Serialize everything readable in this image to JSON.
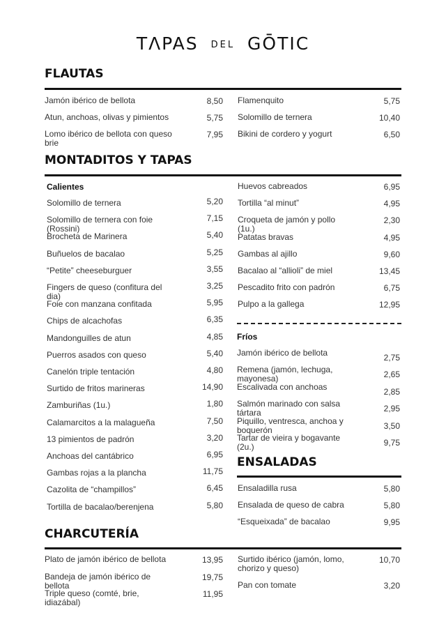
{
  "logo": {
    "part1": "TΛPAS",
    "part2": "DEL",
    "part3": "GŌTIC"
  },
  "flautas": {
    "title": "FLAUTAS",
    "left": [
      {
        "name": "Jamón ibérico de bellota",
        "price": "8,50"
      },
      {
        "name": "Atun, anchoas, olivas y pimientos",
        "price": "5,75"
      },
      {
        "name": "Lomo ibérico de bellota con queso brie",
        "price": "7,95"
      }
    ],
    "right": [
      {
        "name": "Flamenquito",
        "price": "5,75"
      },
      {
        "name": "Solomillo de ternera",
        "price": "10,40"
      },
      {
        "name": "Bikini de cordero y yogurt",
        "price": "6,50"
      }
    ]
  },
  "montaditos": {
    "title": "MONTADITOS Y TAPAS",
    "calientes_label": "Calientes",
    "calientes_left": [
      {
        "name": "Solomillo de ternera",
        "price": "5,20"
      },
      {
        "name": "Solomillo de ternera con foie (Rossini)",
        "price": "7,15"
      },
      {
        "name": "Brocheta de Marinera",
        "price": "5,40"
      },
      {
        "name": "Buñuelos de bacalao",
        "price": "5,25"
      },
      {
        "name": "“Petite” cheeseburguer",
        "price": "3,55"
      },
      {
        "name": "Fingers de queso (confitura del dia)",
        "price": "3,25"
      },
      {
        "name": "Foie con manzana confitada",
        "price": "5,95"
      },
      {
        "name": "Chips de alcachofas",
        "price": "6,35"
      },
      {
        "name": "Mandonguilles de atun",
        "price": "4,85"
      },
      {
        "name": "Puerros asados con queso",
        "price": "5,40"
      },
      {
        "name": "Canelón triple tentación",
        "price": "4,80"
      },
      {
        "name": "Surtido de fritos marineras",
        "price": "14,90"
      },
      {
        "name": "Zamburiñas (1u.)",
        "price": "1,80"
      },
      {
        "name": "Calamarcitos a la malagueña",
        "price": "7,50"
      },
      {
        "name": "13 pimientos de padrón",
        "price": "3,20"
      },
      {
        "name": "Anchoas del cantábrico",
        "price": "6,95"
      },
      {
        "name": "Gambas rojas a la plancha",
        "price": "11,75"
      },
      {
        "name": "Cazolita de “champillos”",
        "price": "6,45"
      },
      {
        "name": "Tortilla de bacalao/berenjena",
        "price": "5,80"
      }
    ],
    "calientes_right": [
      {
        "name": "Huevos cabreados",
        "price": "6,95"
      },
      {
        "name": "Tortilla “al minut”",
        "price": "4,95"
      },
      {
        "name": "Croqueta de jamón y pollo (1u.)",
        "price": "2,30"
      },
      {
        "name": "Patatas bravas",
        "price": "4,95"
      },
      {
        "name": "Gambas al ajillo",
        "price": "9,60"
      },
      {
        "name": "Bacalao al “allioli” de miel",
        "price": "13,45"
      },
      {
        "name": "Pescadito frito con padrón",
        "price": "6,75"
      },
      {
        "name": "Pulpo a la gallega",
        "price": "12,95"
      }
    ],
    "frios_label": "Fríos",
    "frios": [
      {
        "name": "Jamón ibérico de bellota",
        "price": "2,75"
      },
      {
        "name": "Remena (jamón, lechuga, mayonesa)",
        "price": "2,65"
      },
      {
        "name": "Escalivada con anchoas",
        "price": "2,85"
      },
      {
        "name": "Salmón marinado con salsa tártara",
        "price": "2,95"
      },
      {
        "name": "Piquillo, ventresca, anchoa y boquerón",
        "price": "3,50"
      },
      {
        "name": "Tartar de vieira y bogavante (2u.)",
        "price": "9,75"
      }
    ]
  },
  "ensaladas": {
    "title": "ENSALADAS",
    "items": [
      {
        "name": "Ensaladilla rusa",
        "price": "5,80"
      },
      {
        "name": "Ensalada de queso de cabra",
        "price": "5,80"
      },
      {
        "name": "“Esqueixada” de bacalao",
        "price": "9,95"
      }
    ]
  },
  "charcuteria": {
    "title": "CHARCUTERÍA",
    "left": [
      {
        "name": "Plato de jamón ibérico de bellota",
        "price": "13,95"
      },
      {
        "name": "Bandeja de jamón ibérico de bellota",
        "price": "19,75"
      },
      {
        "name": "Triple queso (comté, brie, idiazábal)",
        "price": "11,95"
      }
    ],
    "right": [
      {
        "name": "Surtido ibérico (jamón, lomo, chorizo y queso)",
        "price": "10,70"
      },
      {
        "name": "Pan con tomate",
        "price": "3,20"
      }
    ]
  }
}
